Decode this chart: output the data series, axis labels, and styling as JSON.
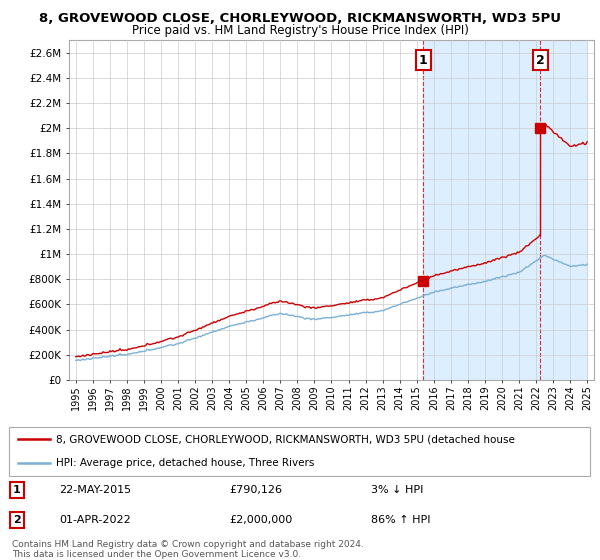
{
  "title1": "8, GROVEWOOD CLOSE, CHORLEYWOOD, RICKMANSWORTH, WD3 5PU",
  "title2": "Price paid vs. HM Land Registry's House Price Index (HPI)",
  "yticks": [
    0,
    200000,
    400000,
    600000,
    800000,
    1000000,
    1200000,
    1400000,
    1600000,
    1800000,
    2000000,
    2200000,
    2400000,
    2600000
  ],
  "ytick_labels": [
    "£0",
    "£200K",
    "£400K",
    "£600K",
    "£800K",
    "£1M",
    "£1.2M",
    "£1.4M",
    "£1.6M",
    "£1.8M",
    "£2M",
    "£2.2M",
    "£2.4M",
    "£2.6M"
  ],
  "ylim": [
    0,
    2700000
  ],
  "sale1_date": 2015.38,
  "sale1_price": 790126,
  "sale1_label": "1",
  "sale2_date": 2022.25,
  "sale2_price": 2000000,
  "sale2_label": "2",
  "hpi_color": "#7ab0d4",
  "price_color": "#cc0000",
  "legend_label1": "8, GROVEWOOD CLOSE, CHORLEYWOOD, RICKMANSWORTH, WD3 5PU (detached house",
  "legend_label2": "HPI: Average price, detached house, Three Rivers",
  "annotation1_date": "22-MAY-2015",
  "annotation1_price": "£790,126",
  "annotation1_hpi": "3% ↓ HPI",
  "annotation2_date": "01-APR-2022",
  "annotation2_price": "£2,000,000",
  "annotation2_hpi": "86% ↑ HPI",
  "footer": "Contains HM Land Registry data © Crown copyright and database right 2024.\nThis data is licensed under the Open Government Licence v3.0.",
  "grid_color": "#cccccc",
  "shade_color": "#ddeeff"
}
